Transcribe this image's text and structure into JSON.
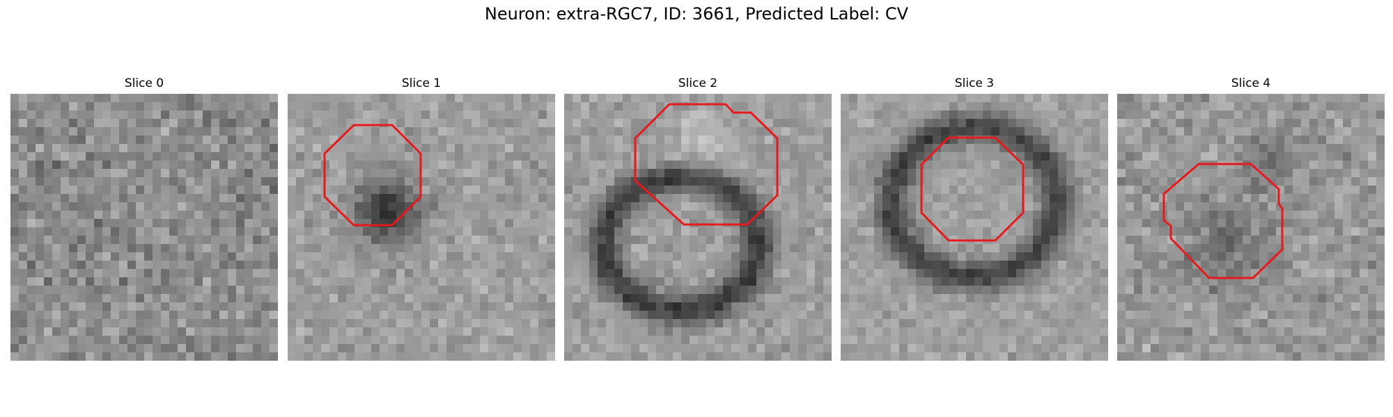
{
  "figure": {
    "title": "Neuron: extra-RGC7, ID: 3661, Predicted Label: CV"
  },
  "panels": [
    {
      "title": "Slice 0",
      "image": "grayscale-noise-slice",
      "roi_shown": false
    },
    {
      "title": "Slice 1",
      "image": "dark-cell-body-slice",
      "roi_shown": true
    },
    {
      "title": "Slice 2",
      "image": "ring-shaped-cell-slice",
      "roi_shown": true
    },
    {
      "title": "Slice 3",
      "image": "ring-shaped-cell-slice",
      "roi_shown": true
    },
    {
      "title": "Slice 4",
      "image": "faint-cell-slice",
      "roi_shown": true
    }
  ],
  "colors": {
    "roi_outline": "#e8191c",
    "background": "#ffffff"
  }
}
